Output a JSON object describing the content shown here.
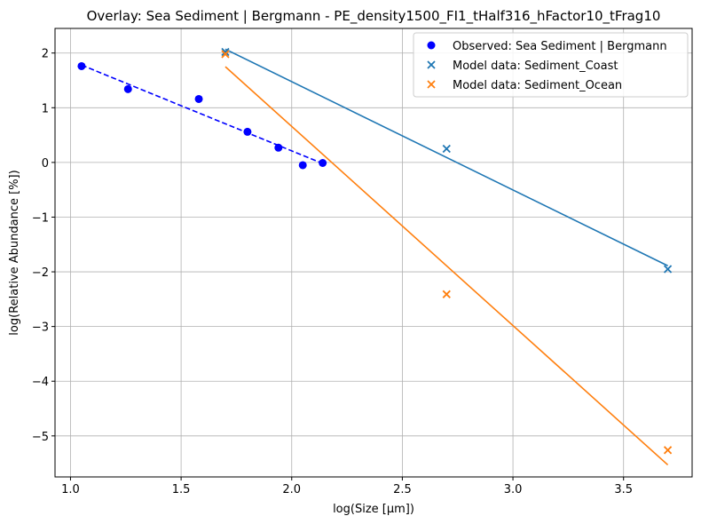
{
  "chart_data": {
    "type": "scatter",
    "title": "Overlay: Sea Sediment | Bergmann - PE_density1500_FI1_tHalf316_hFactor10_tFrag10",
    "xlabel": "log(Size [μm])",
    "ylabel": "log(Relative Abundance [%])",
    "xlim": [
      0.93,
      3.81
    ],
    "ylim": [
      -5.75,
      2.45
    ],
    "xticks": [
      1.0,
      1.5,
      2.0,
      2.5,
      3.0,
      3.5
    ],
    "xtick_labels": [
      "1.0",
      "1.5",
      "2.0",
      "2.5",
      "3.0",
      "3.5"
    ],
    "yticks": [
      2,
      1,
      0,
      -1,
      -2,
      -3,
      -4,
      -5
    ],
    "ytick_labels": [
      "2",
      "1",
      "0",
      "−1",
      "−2",
      "−3",
      "−4",
      "−5"
    ],
    "grid": true,
    "legend_position": "top-right",
    "series": [
      {
        "name": "Observed: Sea Sediment | Bergmann",
        "kind": "scatter",
        "marker": "circle",
        "color": "#0000ff",
        "x": [
          1.05,
          1.26,
          1.58,
          1.8,
          1.94,
          2.05,
          2.14
        ],
        "y": [
          1.76,
          1.34,
          1.16,
          0.56,
          0.27,
          -0.05,
          -0.01
        ]
      },
      {
        "name": "Model data: Sediment_Coast",
        "kind": "scatter",
        "marker": "x",
        "color": "#1f77b4",
        "x": [
          1.7,
          2.7,
          3.7
        ],
        "y": [
          2.02,
          0.25,
          -1.95
        ]
      },
      {
        "name": "Model data: Sediment_Ocean",
        "kind": "scatter",
        "marker": "x",
        "color": "#ff7f0e",
        "x": [
          1.7,
          2.7,
          3.7
        ],
        "y": [
          1.98,
          -2.41,
          -5.26
        ]
      }
    ],
    "fit_lines": [
      {
        "color": "#0000ff",
        "style": "dashed",
        "x": [
          1.05,
          2.14
        ],
        "y": [
          1.78,
          -0.02
        ]
      },
      {
        "color": "#1f77b4",
        "style": "solid",
        "x": [
          1.7,
          3.7
        ],
        "y": [
          2.07,
          -1.89
        ]
      },
      {
        "color": "#ff7f0e",
        "style": "solid",
        "x": [
          1.7,
          3.7
        ],
        "y": [
          1.75,
          -5.53
        ]
      }
    ]
  }
}
